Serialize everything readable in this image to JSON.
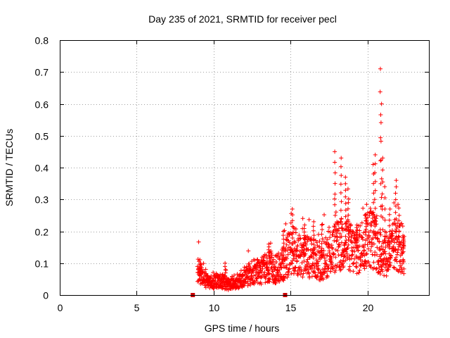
{
  "chart_data": {
    "type": "scatter",
    "title": "Day 235 of 2021, SRMTID for receiver pecl",
    "xlabel": "GPS time / hours",
    "ylabel": "SRMTID / TECUs",
    "xlim": [
      0,
      24
    ],
    "ylim": [
      0,
      0.8
    ],
    "grid": true,
    "series_color": "#ff0000",
    "gap_marker_color": "#cc0000",
    "x_ticks": [
      "0",
      "5",
      "10",
      "15",
      "20"
    ],
    "y_ticks": [
      "0",
      "0.1",
      "0.2",
      "0.3",
      "0.4",
      "0.5",
      "0.6",
      "0.7",
      "0.8"
    ],
    "gap_markers": [
      [
        8.65,
        0.0
      ],
      [
        14.65,
        0.0
      ]
    ],
    "series": [
      {
        "name": "SRMTID",
        "anchors": [
          [
            8.95,
            0.07
          ],
          [
            9.05,
            0.08
          ],
          [
            9.2,
            0.06
          ],
          [
            9.5,
            0.045
          ],
          [
            9.8,
            0.04
          ],
          [
            10.1,
            0.045
          ],
          [
            10.4,
            0.045
          ],
          [
            10.7,
            0.04
          ],
          [
            11.0,
            0.035
          ],
          [
            11.3,
            0.04
          ],
          [
            11.6,
            0.045
          ],
          [
            11.9,
            0.05
          ],
          [
            12.2,
            0.06
          ],
          [
            12.5,
            0.07
          ],
          [
            12.8,
            0.075
          ],
          [
            13.1,
            0.075
          ],
          [
            13.4,
            0.085
          ],
          [
            13.7,
            0.09
          ],
          [
            14.0,
            0.08
          ],
          [
            14.4,
            0.09
          ],
          [
            14.8,
            0.12
          ],
          [
            15.0,
            0.15
          ],
          [
            15.2,
            0.14
          ],
          [
            15.5,
            0.13
          ],
          [
            15.8,
            0.12
          ],
          [
            16.1,
            0.12
          ],
          [
            16.4,
            0.12
          ],
          [
            16.7,
            0.11
          ],
          [
            17.0,
            0.1
          ],
          [
            17.3,
            0.12
          ],
          [
            17.6,
            0.13
          ],
          [
            17.9,
            0.15
          ],
          [
            18.2,
            0.15
          ],
          [
            18.5,
            0.17
          ],
          [
            18.8,
            0.15
          ],
          [
            19.1,
            0.14
          ],
          [
            19.4,
            0.14
          ],
          [
            19.7,
            0.16
          ],
          [
            20.0,
            0.19
          ],
          [
            20.3,
            0.18
          ],
          [
            20.6,
            0.15
          ],
          [
            20.9,
            0.13
          ],
          [
            21.2,
            0.13
          ],
          [
            21.5,
            0.13
          ],
          [
            21.8,
            0.16
          ],
          [
            22.1,
            0.15
          ],
          [
            22.4,
            0.14
          ]
        ],
        "peaks": [
          [
            9.15,
            0.1
          ],
          [
            10.75,
            0.1
          ],
          [
            13.6,
            0.16
          ],
          [
            14.55,
            0.2
          ],
          [
            15.15,
            0.27
          ],
          [
            15.9,
            0.22
          ],
          [
            16.5,
            0.23
          ],
          [
            17.05,
            0.22
          ],
          [
            17.9,
            0.45
          ],
          [
            18.3,
            0.43
          ],
          [
            18.6,
            0.37
          ],
          [
            18.75,
            0.29
          ],
          [
            19.3,
            0.22
          ],
          [
            19.9,
            0.25
          ],
          [
            20.4,
            0.41
          ],
          [
            20.5,
            0.44
          ],
          [
            20.85,
            0.71
          ],
          [
            20.9,
            0.6
          ],
          [
            20.98,
            0.43
          ],
          [
            21.15,
            0.34
          ],
          [
            21.45,
            0.27
          ],
          [
            21.85,
            0.36
          ],
          [
            22.05,
            0.25
          ],
          [
            22.35,
            0.18
          ]
        ]
      }
    ]
  }
}
